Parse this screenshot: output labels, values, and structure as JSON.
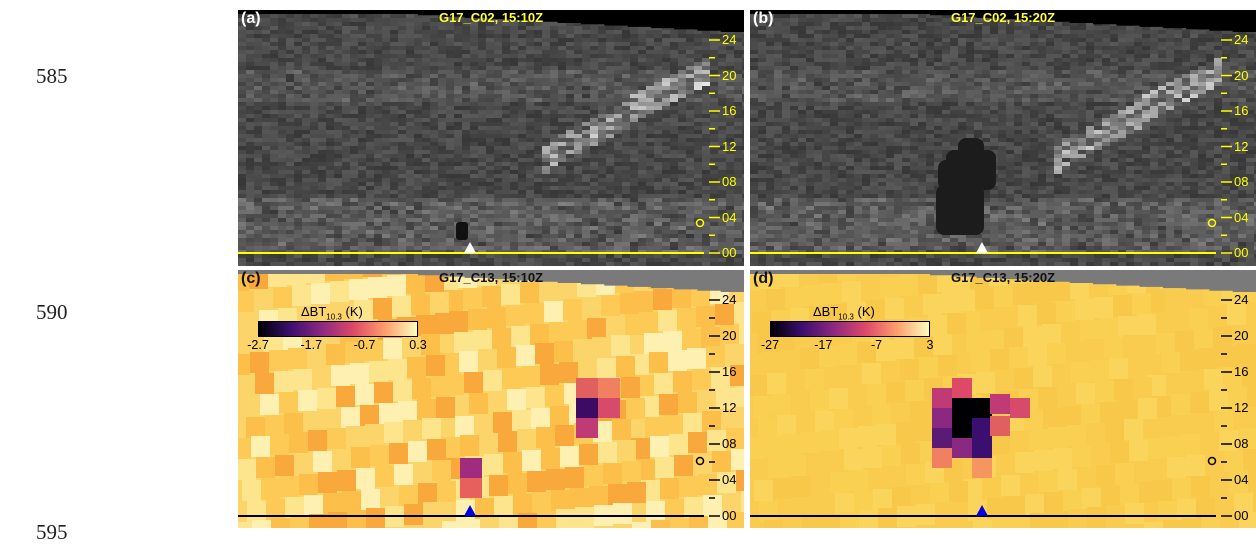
{
  "line_numbers": [
    "585",
    "590",
    "595"
  ],
  "panels": [
    {
      "letter": "(a)",
      "title": "G17_C02, 15:10Z",
      "kind": "gray",
      "seed": 11,
      "blob": "small"
    },
    {
      "letter": "(b)",
      "title": "G17_C02, 15:20Z",
      "kind": "gray",
      "seed": 23,
      "blob": "large"
    },
    {
      "letter": "(c)",
      "title": "G17_C13, 15:10Z",
      "kind": "color",
      "seed": 37,
      "blob": "small",
      "colorbar": {
        "label_main": "ΔBT",
        "label_sub": "10.3",
        "label_unit": "(K)",
        "ticks": [
          "-2.7",
          "-1.7",
          "-0.7",
          "0.3"
        ]
      }
    },
    {
      "letter": "(d)",
      "title": "G17_C13, 15:20Z",
      "kind": "color",
      "seed": 41,
      "blob": "large",
      "colorbar": {
        "label_main": "ΔBT",
        "label_sub": "10.3",
        "label_unit": "(K)",
        "ticks": [
          "-27",
          "-17",
          "-7",
          "3"
        ]
      }
    }
  ],
  "axis_ticks": [
    "24",
    "20",
    "16",
    "12",
    "08",
    "04",
    "00"
  ],
  "colors": {
    "gray_axis": "#ffff00",
    "color_axis": "#000000",
    "marker_gray": "#ffffff",
    "marker_color": "#0000dd",
    "header_gray": "#7a7a7a"
  }
}
